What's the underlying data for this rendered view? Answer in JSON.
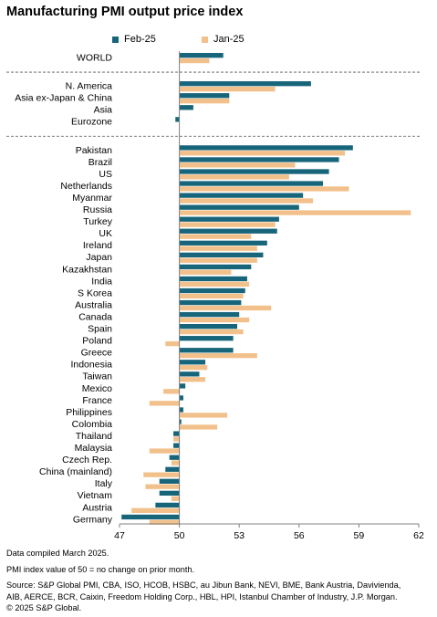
{
  "title": "Manufacturing PMI output price index",
  "colors": {
    "feb": "#17657a",
    "jan": "#f2c08a",
    "axis": "#808080",
    "divider": "#555555"
  },
  "legend": {
    "feb_label": "Feb-25",
    "jan_label": "Jan-25"
  },
  "chart_data": {
    "type": "bar",
    "orientation": "horizontal",
    "title": "Manufacturing PMI output price index",
    "xlim": [
      47,
      62
    ],
    "xticks": [
      47,
      50,
      53,
      56,
      59,
      62
    ],
    "baseline": 50,
    "groups": [
      [
        "WORLD"
      ],
      [
        "N. America",
        "Asia ex-Japan & China",
        "Asia",
        "Eurozone"
      ],
      [
        "Pakistan",
        "Brazil",
        "US",
        "Netherlands",
        "Myanmar",
        "Russia",
        "Turkey",
        "UK",
        "Ireland",
        "Japan",
        "Kazakhstan",
        "India",
        "S Korea",
        "Australia",
        "Canada",
        "Spain",
        "Poland",
        "Greece",
        "Indonesia",
        "Taiwan",
        "Mexico",
        "France",
        "Philippines",
        "Colombia",
        "Thailand",
        "Malaysia",
        "Czech Rep.",
        "China (mainland)",
        "Italy",
        "Vietnam",
        "Austria",
        "Germany"
      ]
    ],
    "categories": [
      "WORLD",
      "N. America",
      "Asia ex-Japan & China",
      "Asia",
      "Eurozone",
      "Pakistan",
      "Brazil",
      "US",
      "Netherlands",
      "Myanmar",
      "Russia",
      "Turkey",
      "UK",
      "Ireland",
      "Japan",
      "Kazakhstan",
      "India",
      "S Korea",
      "Australia",
      "Canada",
      "Spain",
      "Poland",
      "Greece",
      "Indonesia",
      "Taiwan",
      "Mexico",
      "France",
      "Philippines",
      "Colombia",
      "Thailand",
      "Malaysia",
      "Czech Rep.",
      "China (mainland)",
      "Italy",
      "Vietnam",
      "Austria",
      "Germany"
    ],
    "series": [
      {
        "name": "Feb-25",
        "values": [
          52.2,
          56.6,
          52.5,
          50.7,
          49.8,
          58.7,
          58.0,
          57.5,
          57.2,
          56.2,
          56.0,
          55.0,
          54.9,
          54.4,
          54.2,
          53.6,
          53.4,
          53.3,
          53.1,
          53.0,
          52.9,
          52.7,
          52.7,
          51.3,
          51.0,
          50.3,
          50.2,
          50.2,
          50.1,
          49.7,
          49.7,
          49.5,
          49.3,
          49.0,
          49.0,
          48.8,
          47.1
        ]
      },
      {
        "name": "Jan-25",
        "values": [
          51.5,
          54.8,
          52.5,
          50.0,
          50.0,
          58.3,
          55.8,
          55.5,
          58.5,
          56.7,
          61.6,
          54.8,
          53.6,
          53.9,
          53.9,
          52.6,
          53.5,
          53.2,
          54.6,
          53.5,
          53.2,
          49.3,
          53.9,
          51.4,
          51.3,
          49.2,
          48.5,
          52.4,
          51.9,
          49.7,
          48.5,
          49.6,
          48.2,
          48.3,
          49.6,
          47.6,
          48.5
        ]
      }
    ]
  },
  "notes": {
    "line1": "Data compiled March 2025.",
    "line2": "PMI index value of 50 = no change on prior month.",
    "line3": "Source: S&P Global PMI, CBA, ISO, HCOB, HSBC, au Jibun Bank, NEVI, BME, Bank Austria, Davivienda,",
    "line4": "AIB, AERCE, BCR, Caixin, Freedom Holding Corp., HBL, HPI, Istanbul Chamber of Industry, J.P. Morgan.",
    "line5": "© 2025 S&P Global."
  }
}
